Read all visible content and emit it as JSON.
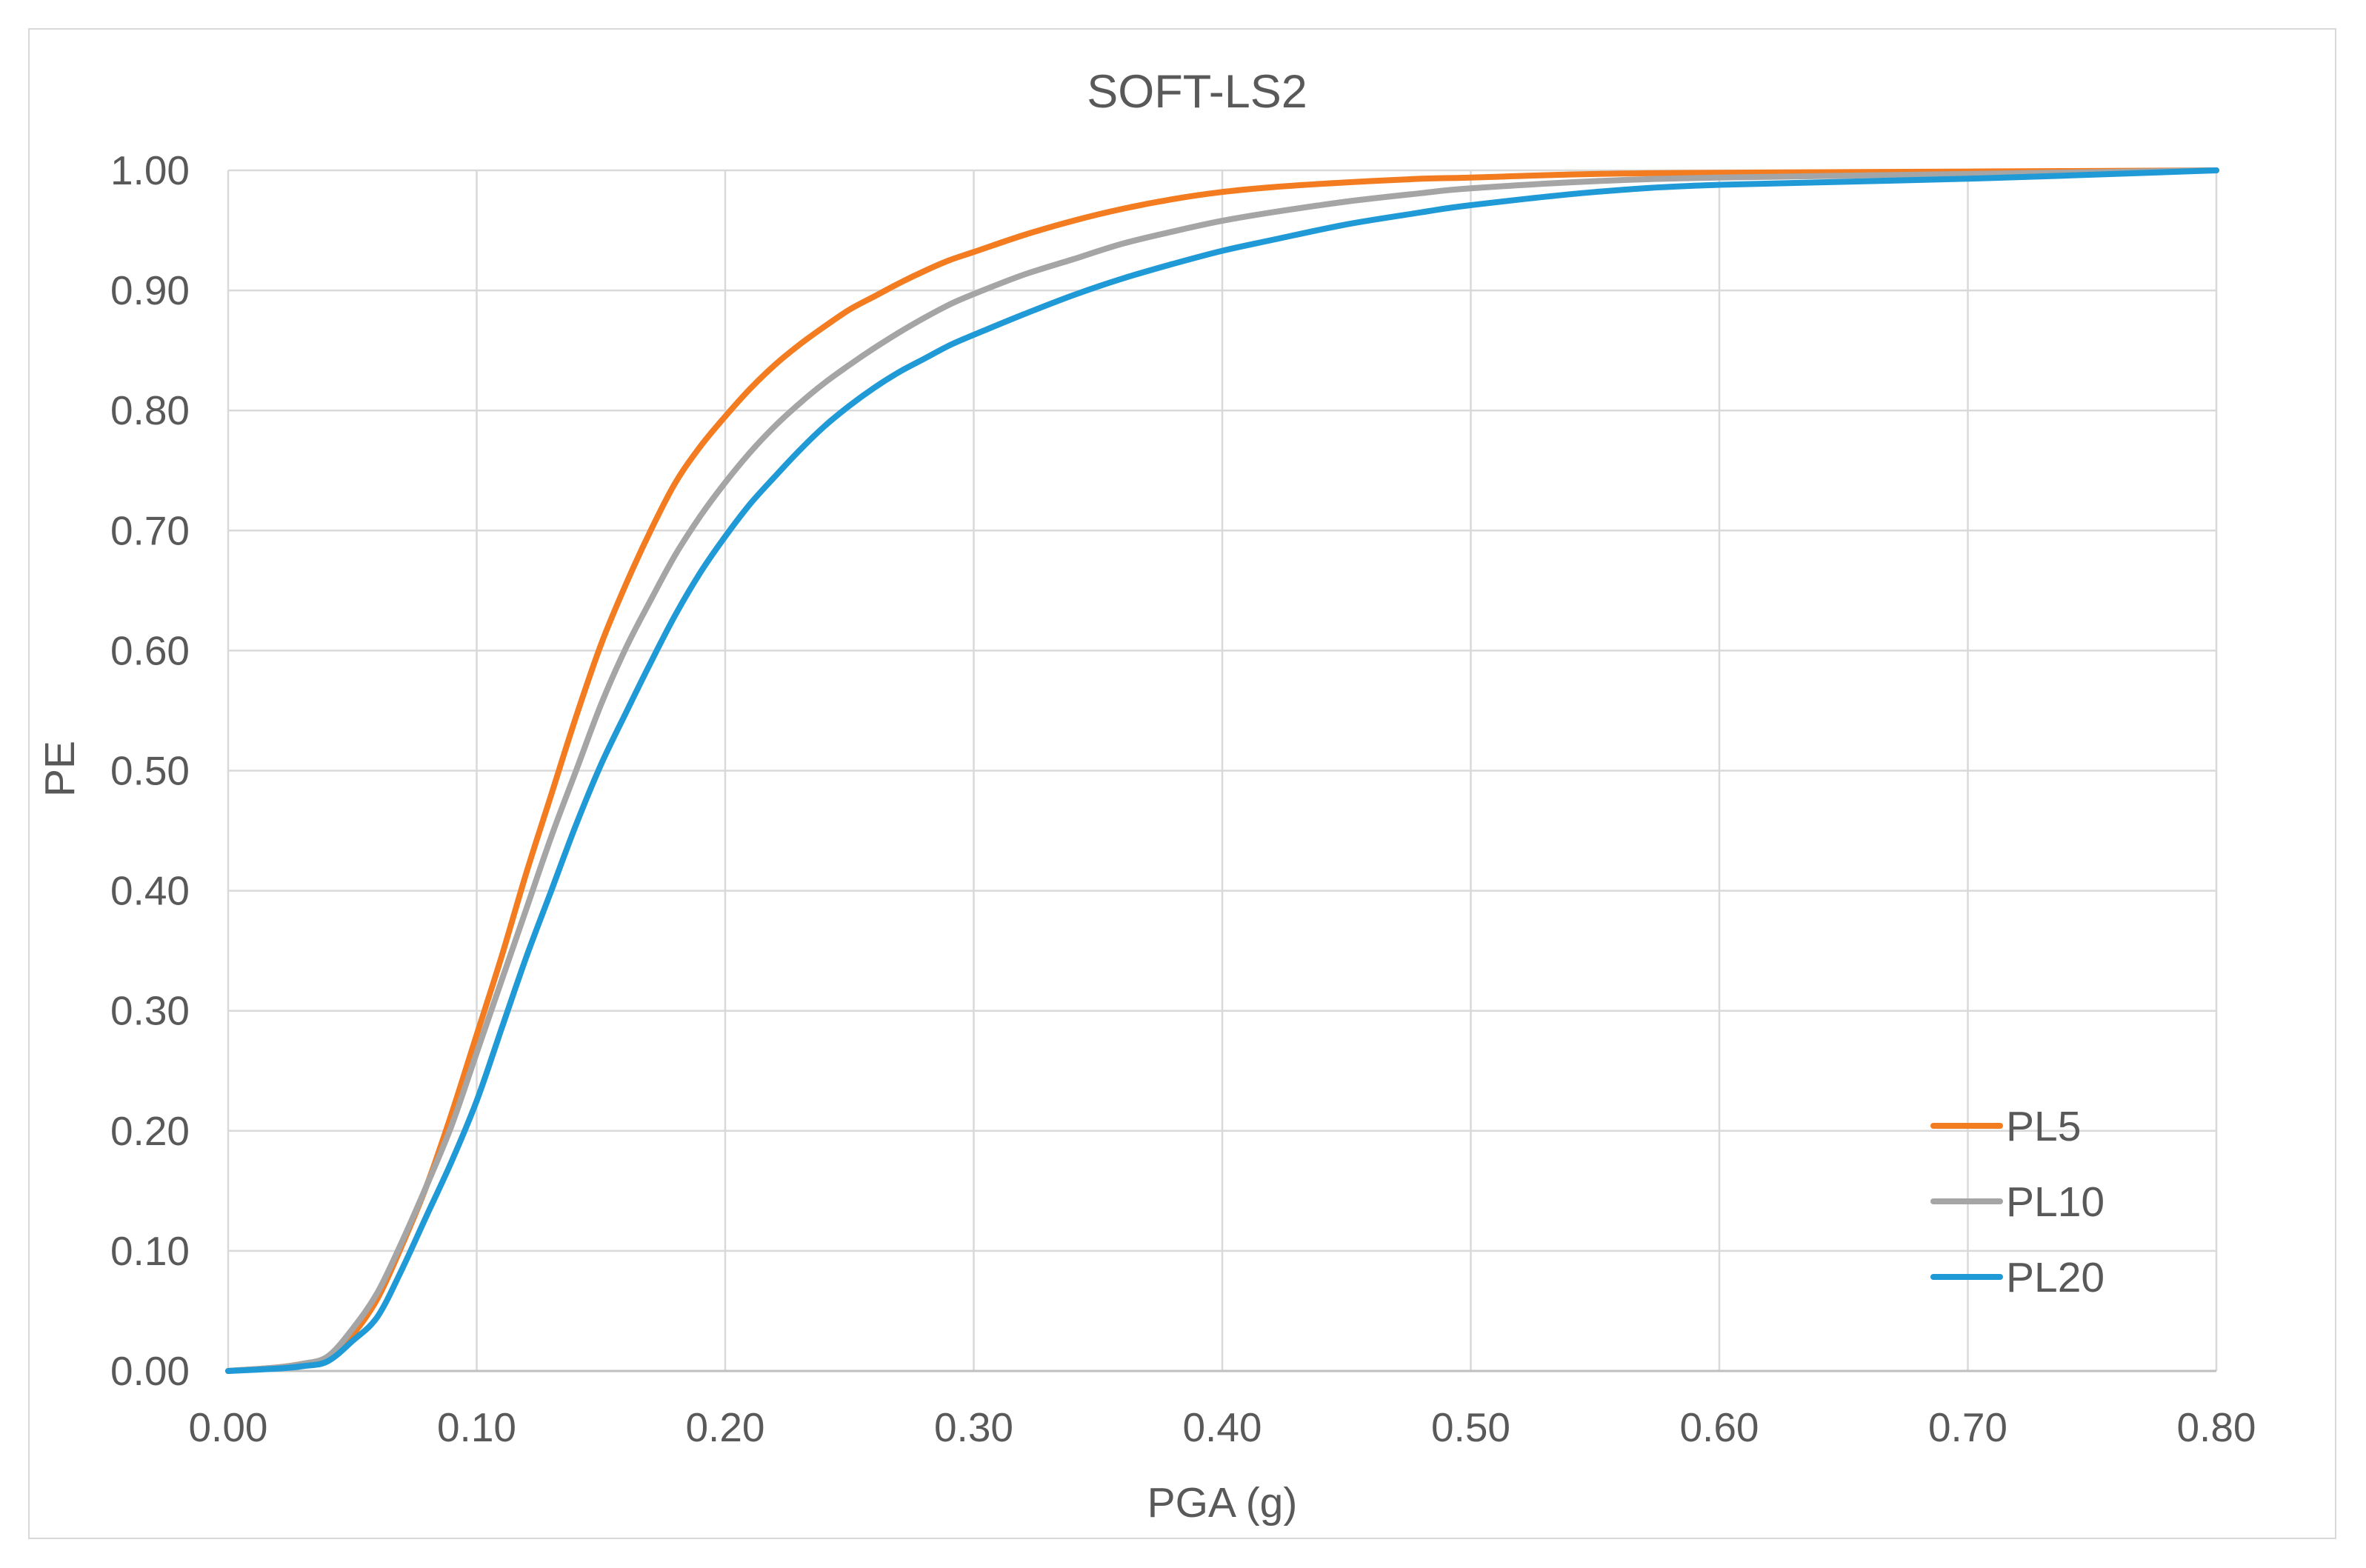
{
  "chart_data": {
    "type": "line",
    "title": "SOFT-LS2",
    "xlabel": "PGA (g)",
    "ylabel": "PE",
    "xlim": [
      0,
      0.8
    ],
    "ylim": [
      0,
      1
    ],
    "x_ticks": [
      "0.00",
      "0.10",
      "0.20",
      "0.30",
      "0.40",
      "0.50",
      "0.60",
      "0.70",
      "0.80"
    ],
    "y_ticks": [
      "0.00",
      "0.10",
      "0.20",
      "0.30",
      "0.40",
      "0.50",
      "0.60",
      "0.70",
      "0.80",
      "0.90",
      "1.00"
    ],
    "grid": true,
    "legend_position": "bottom-right",
    "series": [
      {
        "name": "PL5",
        "color": "#f47c20",
        "x": [
          0.0,
          0.02,
          0.03,
          0.04,
          0.05,
          0.06,
          0.07,
          0.08,
          0.09,
          0.1,
          0.11,
          0.12,
          0.13,
          0.14,
          0.15,
          0.16,
          0.17,
          0.18,
          0.19,
          0.2,
          0.21,
          0.22,
          0.23,
          0.24,
          0.25,
          0.26,
          0.27,
          0.28,
          0.29,
          0.3,
          0.32,
          0.34,
          0.36,
          0.38,
          0.4,
          0.42,
          0.45,
          0.48,
          0.5,
          0.55,
          0.6,
          0.7,
          0.8
        ],
        "y": [
          0.0,
          0.003,
          0.006,
          0.01,
          0.03,
          0.06,
          0.105,
          0.155,
          0.215,
          0.28,
          0.345,
          0.415,
          0.48,
          0.545,
          0.605,
          0.655,
          0.7,
          0.74,
          0.77,
          0.795,
          0.818,
          0.838,
          0.855,
          0.87,
          0.884,
          0.895,
          0.906,
          0.916,
          0.925,
          0.932,
          0.946,
          0.958,
          0.968,
          0.976,
          0.982,
          0.986,
          0.99,
          0.993,
          0.994,
          0.997,
          0.998,
          0.999,
          1.0
        ]
      },
      {
        "name": "PL10",
        "color": "#a5a5a5",
        "x": [
          0.0,
          0.02,
          0.03,
          0.04,
          0.05,
          0.06,
          0.07,
          0.08,
          0.09,
          0.1,
          0.11,
          0.12,
          0.13,
          0.14,
          0.15,
          0.16,
          0.17,
          0.18,
          0.19,
          0.2,
          0.21,
          0.22,
          0.23,
          0.24,
          0.25,
          0.26,
          0.27,
          0.28,
          0.29,
          0.3,
          0.32,
          0.34,
          0.36,
          0.38,
          0.4,
          0.42,
          0.45,
          0.48,
          0.5,
          0.55,
          0.6,
          0.7,
          0.8
        ],
        "y": [
          0.0,
          0.003,
          0.006,
          0.012,
          0.035,
          0.065,
          0.108,
          0.155,
          0.205,
          0.265,
          0.325,
          0.385,
          0.445,
          0.5,
          0.555,
          0.602,
          0.642,
          0.68,
          0.712,
          0.74,
          0.765,
          0.787,
          0.806,
          0.823,
          0.838,
          0.852,
          0.865,
          0.877,
          0.888,
          0.897,
          0.913,
          0.926,
          0.939,
          0.949,
          0.958,
          0.965,
          0.974,
          0.981,
          0.985,
          0.991,
          0.994,
          0.997,
          1.0
        ]
      },
      {
        "name": "PL20",
        "color": "#1f9ad6",
        "x": [
          0.0,
          0.02,
          0.03,
          0.04,
          0.05,
          0.06,
          0.07,
          0.08,
          0.09,
          0.1,
          0.11,
          0.12,
          0.13,
          0.14,
          0.15,
          0.16,
          0.17,
          0.18,
          0.19,
          0.2,
          0.21,
          0.22,
          0.23,
          0.24,
          0.25,
          0.26,
          0.27,
          0.28,
          0.29,
          0.3,
          0.32,
          0.34,
          0.36,
          0.38,
          0.4,
          0.42,
          0.45,
          0.48,
          0.5,
          0.55,
          0.6,
          0.7,
          0.8
        ],
        "y": [
          0.0,
          0.002,
          0.004,
          0.008,
          0.025,
          0.045,
          0.085,
          0.13,
          0.175,
          0.225,
          0.285,
          0.345,
          0.4,
          0.455,
          0.505,
          0.548,
          0.59,
          0.63,
          0.665,
          0.695,
          0.722,
          0.745,
          0.767,
          0.787,
          0.804,
          0.819,
          0.832,
          0.843,
          0.854,
          0.863,
          0.88,
          0.896,
          0.91,
          0.922,
          0.933,
          0.942,
          0.955,
          0.965,
          0.971,
          0.982,
          0.988,
          0.993,
          1.0
        ]
      }
    ]
  }
}
